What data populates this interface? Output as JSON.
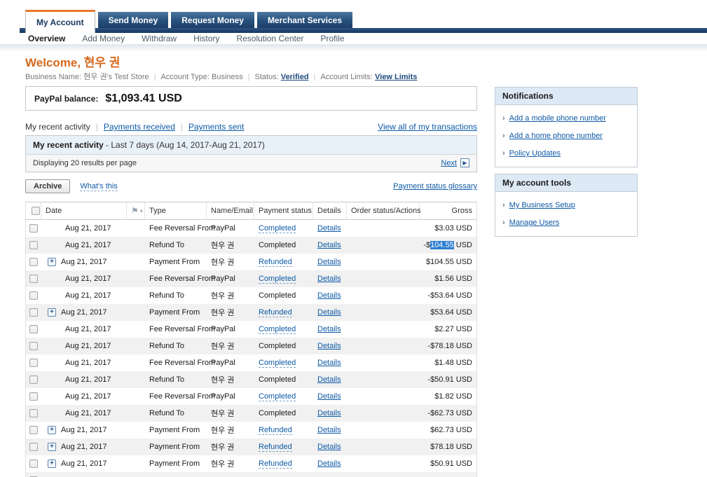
{
  "colors": {
    "accent_orange": "#e8762d",
    "welcome_orange": "#d4691b",
    "link_blue": "#0d5aa5",
    "navy_bar": "#1c3f6b",
    "selection_blue": "#2f7fd3",
    "panel_header_bg": "#e9f1f8",
    "sidebar_header_bg": "#dde9f5",
    "alt_row_bg": "#f1f1f1"
  },
  "tabs": [
    {
      "label": "My Account",
      "active": true
    },
    {
      "label": "Send Money",
      "active": false
    },
    {
      "label": "Request Money",
      "active": false
    },
    {
      "label": "Merchant Services",
      "active": false
    }
  ],
  "subnav": [
    {
      "label": "Overview",
      "active": true
    },
    {
      "label": "Add Money",
      "active": false
    },
    {
      "label": "Withdraw",
      "active": false
    },
    {
      "label": "History",
      "active": false
    },
    {
      "label": "Resolution Center",
      "active": false
    },
    {
      "label": "Profile",
      "active": false
    }
  ],
  "welcome": {
    "prefix": "Welcome,",
    "name": "현우 권"
  },
  "account_info": [
    {
      "label": "Business Name:",
      "value": "현우 권's Test Store",
      "link": false
    },
    {
      "label": "Account Type:",
      "value": "Business",
      "link": false
    },
    {
      "label": "Status:",
      "value": "Verified",
      "link": true
    },
    {
      "label": "Account Limits:",
      "value": "View Limits",
      "link": true
    }
  ],
  "balance": {
    "label": "PayPal balance:",
    "amount": "$1,093.41 USD"
  },
  "activity_nav": {
    "current": "My recent activity",
    "links": [
      "Payments received",
      "Payments sent"
    ],
    "view_all": "View all of my transactions"
  },
  "panel": {
    "title": "My recent activity",
    "title_suffix": " - Last 7 days (Aug 14, 2017-Aug 21, 2017)",
    "displaying": "Displaying 20 results per page",
    "next": "Next",
    "archive": "Archive",
    "whats_this": "What's this",
    "glossary": "Payment status glossary"
  },
  "table": {
    "headers": {
      "date": "Date",
      "type": "Type",
      "name": "Name/Email",
      "status": "Payment status",
      "details": "Details",
      "order": "Order status/Actions",
      "gross": "Gross"
    },
    "details_label": "Details",
    "rows": [
      {
        "expand": false,
        "date": "Aug 21, 2017",
        "type": "Fee Reversal From",
        "name": "PayPal",
        "status": "Completed",
        "status_dashed": true,
        "gross": "$3.03 USD"
      },
      {
        "expand": false,
        "date": "Aug 21, 2017",
        "type": "Refund To",
        "name": "현우 권",
        "status": "Completed",
        "status_dashed": false,
        "gross_pre": "-$",
        "gross_sel": "104.55",
        "gross_post": " USD"
      },
      {
        "expand": true,
        "date": "Aug 21, 2017",
        "type": "Payment From",
        "name": "현우 권",
        "status": "Refunded",
        "status_dashed": true,
        "gross": "$104.55 USD"
      },
      {
        "expand": false,
        "date": "Aug 21, 2017",
        "type": "Fee Reversal From",
        "name": "PayPal",
        "status": "Completed",
        "status_dashed": true,
        "gross": "$1.56 USD"
      },
      {
        "expand": false,
        "date": "Aug 21, 2017",
        "type": "Refund To",
        "name": "현우 권",
        "status": "Completed",
        "status_dashed": false,
        "gross": "-$53.64 USD"
      },
      {
        "expand": true,
        "date": "Aug 21, 2017",
        "type": "Payment From",
        "name": "현우 권",
        "status": "Refunded",
        "status_dashed": true,
        "gross": "$53.64 USD"
      },
      {
        "expand": false,
        "date": "Aug 21, 2017",
        "type": "Fee Reversal From",
        "name": "PayPal",
        "status": "Completed",
        "status_dashed": true,
        "gross": "$2.27 USD"
      },
      {
        "expand": false,
        "date": "Aug 21, 2017",
        "type": "Refund To",
        "name": "현우 권",
        "status": "Completed",
        "status_dashed": false,
        "gross": "-$78.18 USD"
      },
      {
        "expand": false,
        "date": "Aug 21, 2017",
        "type": "Fee Reversal From",
        "name": "PayPal",
        "status": "Completed",
        "status_dashed": true,
        "gross": "$1.48 USD"
      },
      {
        "expand": false,
        "date": "Aug 21, 2017",
        "type": "Refund To",
        "name": "현우 권",
        "status": "Completed",
        "status_dashed": false,
        "gross": "-$50.91 USD"
      },
      {
        "expand": false,
        "date": "Aug 21, 2017",
        "type": "Fee Reversal From",
        "name": "PayPal",
        "status": "Completed",
        "status_dashed": true,
        "gross": "$1.82 USD"
      },
      {
        "expand": false,
        "date": "Aug 21, 2017",
        "type": "Refund To",
        "name": "현우 권",
        "status": "Completed",
        "status_dashed": false,
        "gross": "-$62.73 USD"
      },
      {
        "expand": true,
        "date": "Aug 21, 2017",
        "type": "Payment From",
        "name": "현우 권",
        "status": "Refunded",
        "status_dashed": true,
        "gross": "$62.73 USD"
      },
      {
        "expand": true,
        "date": "Aug 21, 2017",
        "type": "Payment From",
        "name": "현우 권",
        "status": "Refunded",
        "status_dashed": true,
        "gross": "$78.18 USD"
      },
      {
        "expand": true,
        "date": "Aug 21, 2017",
        "type": "Payment From",
        "name": "현우 권",
        "status": "Refunded",
        "status_dashed": true,
        "gross": "$50.91 USD"
      },
      {
        "partial": true,
        "expand": false,
        "date": "",
        "type": "",
        "name": "",
        "status": "",
        "status_dashed": false,
        "gross": ""
      }
    ]
  },
  "sidebar": {
    "notifications": {
      "title": "Notifications",
      "items": [
        "Add a mobile phone number",
        "Add a home phone number",
        "Policy Updates"
      ]
    },
    "tools": {
      "title": "My account tools",
      "items": [
        "My Business Setup",
        "Manage Users"
      ]
    }
  }
}
